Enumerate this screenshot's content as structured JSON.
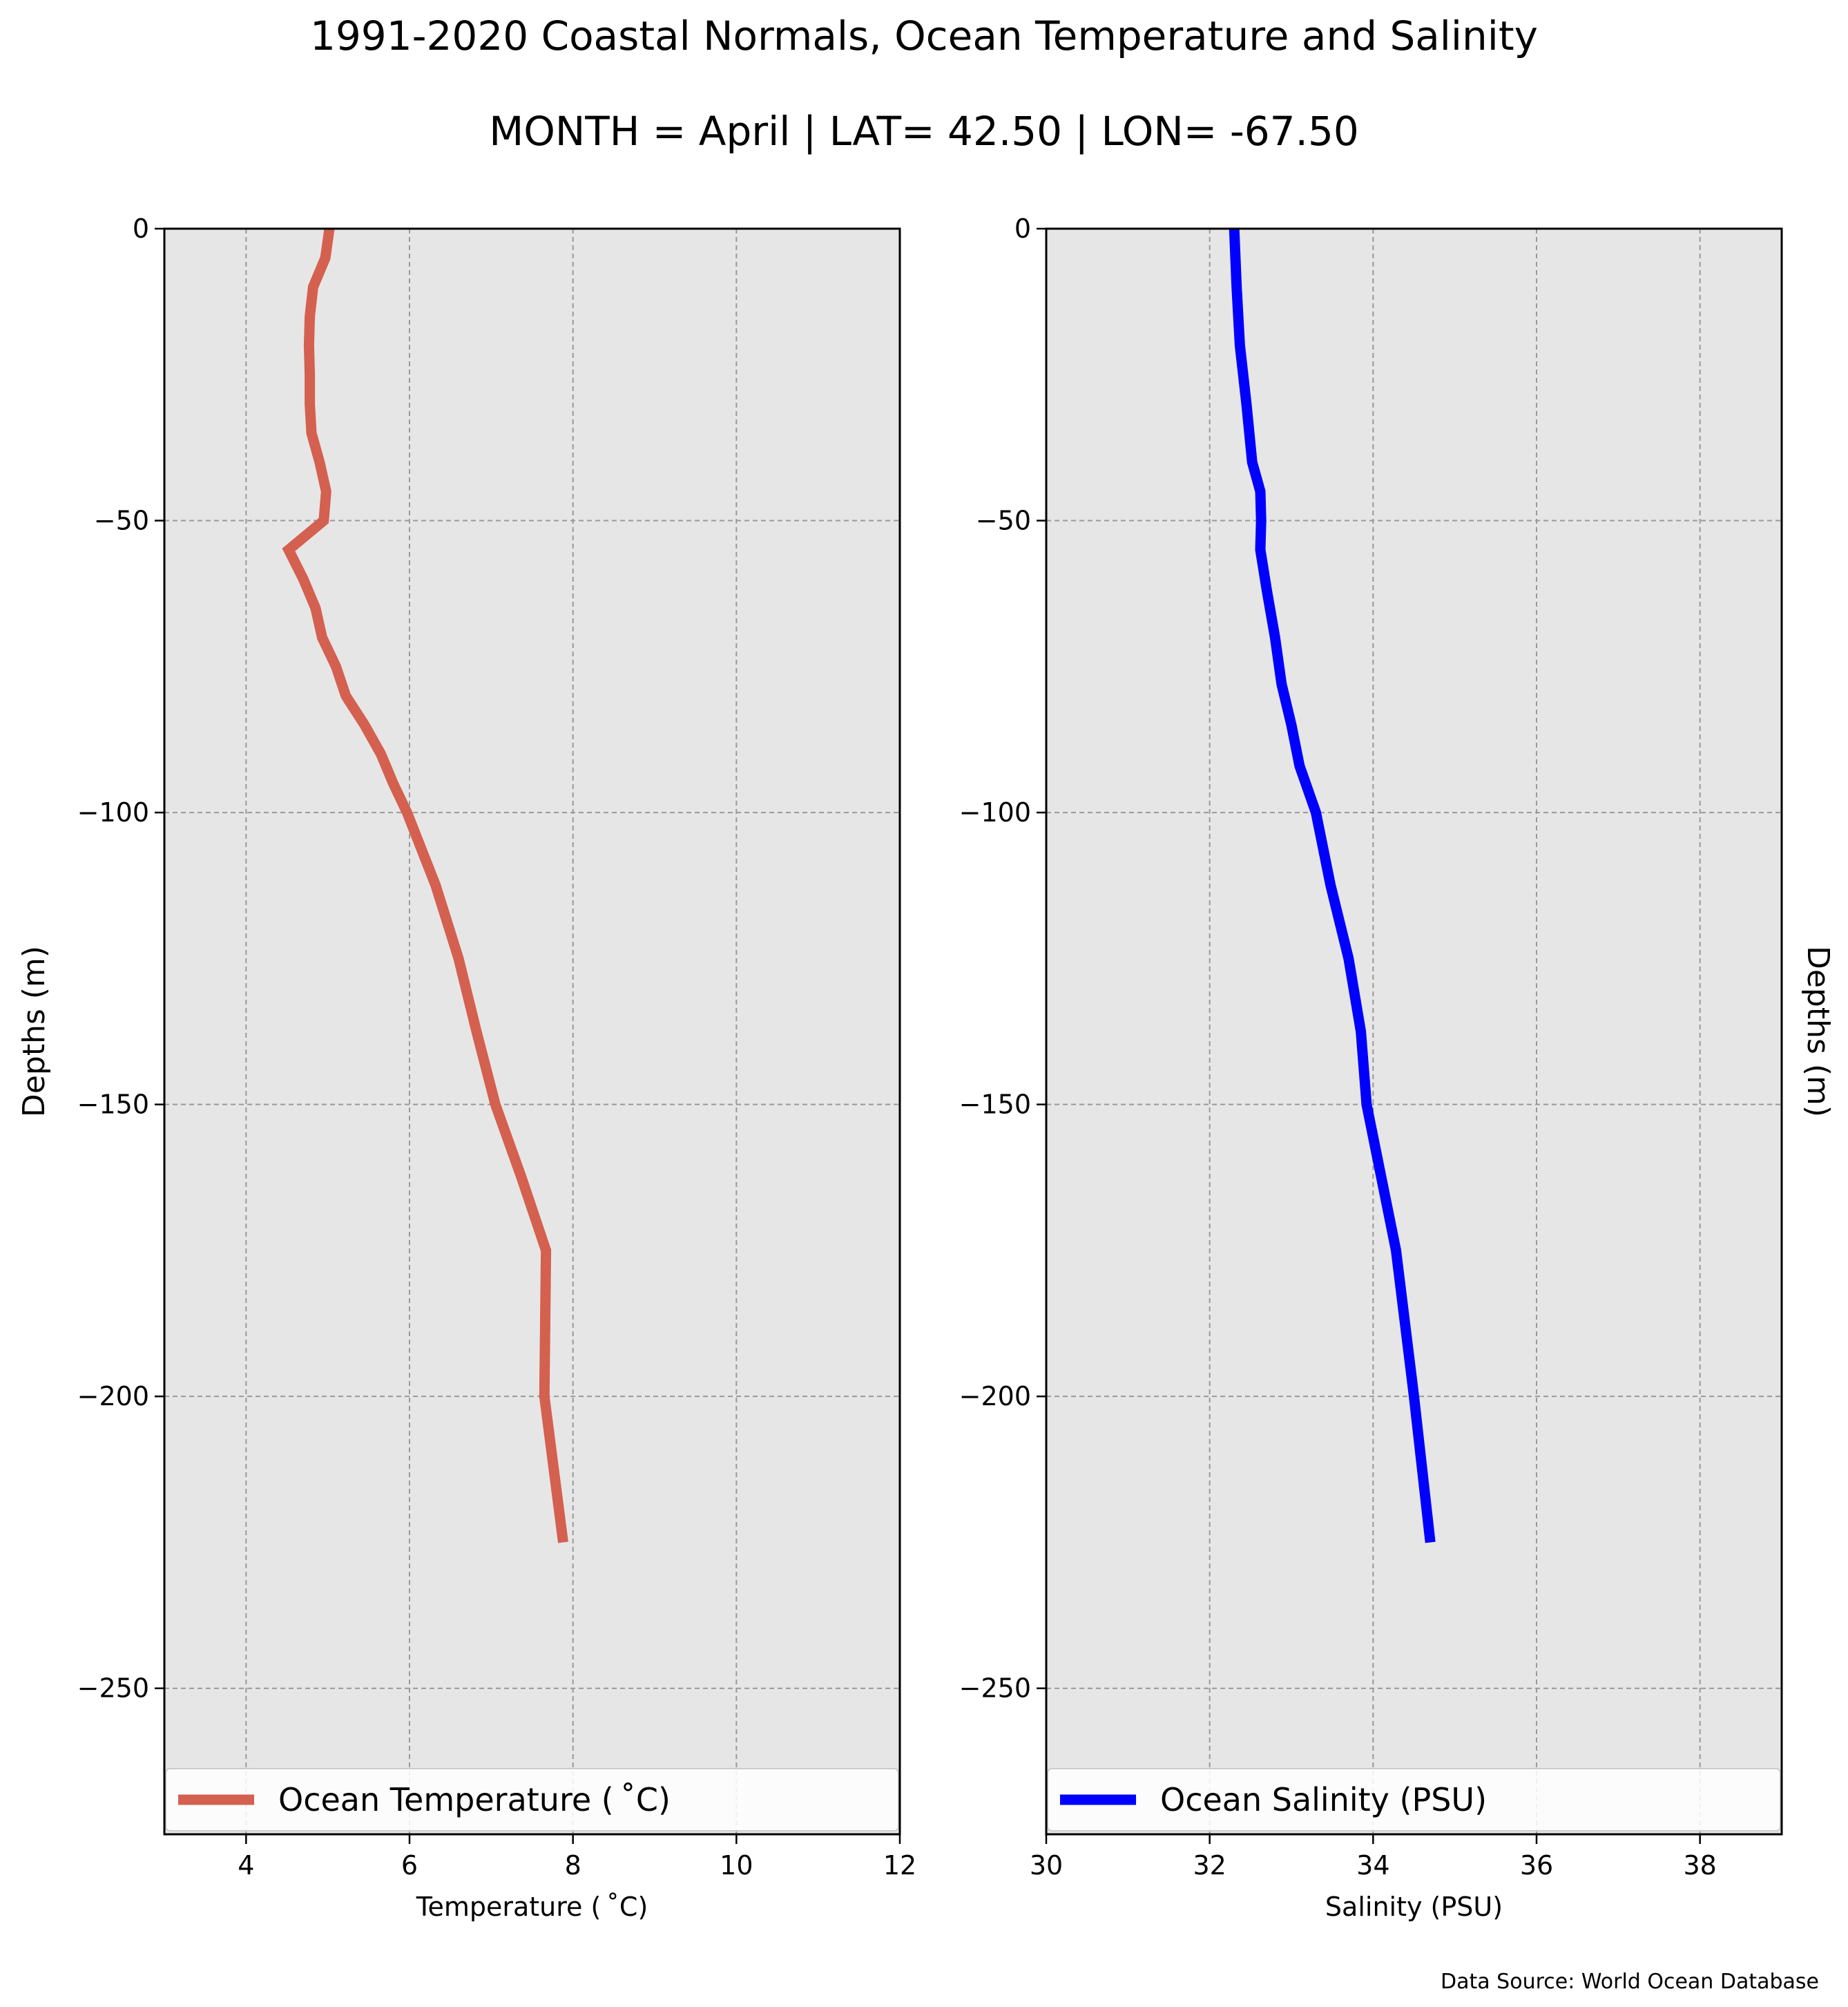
{
  "figure": {
    "title": "1991-2020 Coastal Normals, Ocean Temperature and Salinity",
    "subtitle": "MONTH = April | LAT= 42.50 | LON= -67.50",
    "footer": "Data Source: World Ocean Database"
  },
  "colors": {
    "plot_background": "#e7e6e6",
    "grid": "#999999",
    "temperature_line": "#d4604f",
    "salinity_line": "#0000ff"
  },
  "chart_data": [
    {
      "type": "line",
      "xlabel": "Temperature ($^\\circ$C)",
      "xlabel_display": "Temperature ( ˚C)",
      "ylabel": "Depths (m)",
      "xlim": [
        3,
        12
      ],
      "ylim": [
        -275,
        0
      ],
      "x_ticks": [
        4,
        6,
        8,
        10,
        12
      ],
      "y_ticks": [
        0,
        -50,
        -100,
        -150,
        -200,
        -250
      ],
      "grid": true,
      "legend_position": "bottom",
      "series": [
        {
          "name": "Ocean Temperature ( ˚C)",
          "color": "#d4604f",
          "points": [
            [
              5.02,
              0
            ],
            [
              4.97,
              -5
            ],
            [
              4.82,
              -10
            ],
            [
              4.78,
              -15
            ],
            [
              4.77,
              -20
            ],
            [
              4.78,
              -25
            ],
            [
              4.78,
              -30
            ],
            [
              4.8,
              -35
            ],
            [
              4.9,
              -40
            ],
            [
              4.98,
              -45
            ],
            [
              4.95,
              -50
            ],
            [
              4.52,
              -55
            ],
            [
              4.7,
              -60
            ],
            [
              4.85,
              -65
            ],
            [
              4.93,
              -70
            ],
            [
              5.1,
              -75
            ],
            [
              5.22,
              -80
            ],
            [
              5.45,
              -85
            ],
            [
              5.65,
              -90
            ],
            [
              5.8,
              -95
            ],
            [
              5.97,
              -100
            ],
            [
              6.32,
              -112.5
            ],
            [
              6.6,
              -125
            ],
            [
              6.82,
              -137.5
            ],
            [
              7.05,
              -150
            ],
            [
              7.37,
              -162.5
            ],
            [
              7.67,
              -175
            ],
            [
              7.65,
              -200
            ],
            [
              7.88,
              -225
            ]
          ]
        }
      ]
    },
    {
      "type": "line",
      "xlabel": "Salinity (PSU)",
      "ylabel": "Depths (m)",
      "xlim": [
        30,
        39
      ],
      "ylim": [
        -275,
        0
      ],
      "x_ticks": [
        30,
        32,
        34,
        36,
        38
      ],
      "y_ticks": [
        0,
        -50,
        -100,
        -150,
        -200,
        -250
      ],
      "grid": true,
      "legend_position": "bottom",
      "series": [
        {
          "name": "Ocean Salinity (PSU)",
          "color": "#0000ff",
          "points": [
            [
              32.3,
              0
            ],
            [
              32.33,
              -10
            ],
            [
              32.37,
              -20
            ],
            [
              32.45,
              -30
            ],
            [
              32.52,
              -40
            ],
            [
              32.62,
              -45
            ],
            [
              32.63,
              -50
            ],
            [
              32.62,
              -55
            ],
            [
              32.7,
              -62
            ],
            [
              32.8,
              -70
            ],
            [
              32.88,
              -78
            ],
            [
              33.0,
              -85
            ],
            [
              33.1,
              -92
            ],
            [
              33.3,
              -100
            ],
            [
              33.48,
              -112.5
            ],
            [
              33.7,
              -125
            ],
            [
              33.85,
              -137.5
            ],
            [
              33.92,
              -150
            ],
            [
              34.1,
              -162.5
            ],
            [
              34.28,
              -175
            ],
            [
              34.5,
              -200
            ],
            [
              34.7,
              -225
            ]
          ]
        }
      ]
    }
  ]
}
